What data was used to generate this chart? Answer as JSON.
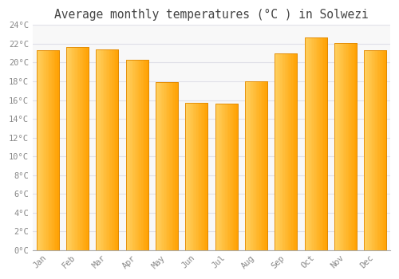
{
  "title": "Average monthly temperatures (°C ) in Solwezi",
  "months": [
    "Jan",
    "Feb",
    "Mar",
    "Apr",
    "May",
    "Jun",
    "Jul",
    "Aug",
    "Sep",
    "Oct",
    "Nov",
    "Dec"
  ],
  "values": [
    21.3,
    21.7,
    21.4,
    20.3,
    17.9,
    15.7,
    15.6,
    18.0,
    21.0,
    22.7,
    22.1,
    21.3
  ],
  "bar_color_light": "#FFD060",
  "bar_color_mid": "#FFC020",
  "bar_color_dark": "#FFA000",
  "bar_edge_color": "#E08800",
  "ylim": [
    0,
    24
  ],
  "yticks": [
    0,
    2,
    4,
    6,
    8,
    10,
    12,
    14,
    16,
    18,
    20,
    22,
    24
  ],
  "background_color": "#FFFFFF",
  "plot_bg_color": "#F8F8F8",
  "grid_color": "#E0E0E8",
  "title_fontsize": 10.5,
  "tick_fontsize": 7.5,
  "title_color": "#444444",
  "tick_color": "#888888"
}
